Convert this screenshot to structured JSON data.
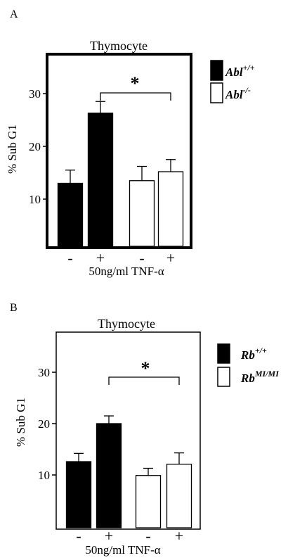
{
  "chart_data": [
    {
      "type": "bar",
      "panel_label": "A",
      "title": "Thymocyte",
      "ylabel": "% Sub G1",
      "xlabel": "50ng/ml TNF-α",
      "ylim": [
        0,
        38
      ],
      "yticks": [
        10,
        20,
        30
      ],
      "grid": false,
      "legend_position": "right",
      "categories": [
        "-",
        "+",
        "-",
        "+"
      ],
      "bars": [
        {
          "group": "Abl+/+",
          "category": "-",
          "value": 13.0,
          "error": 2.5,
          "fill": "#000000"
        },
        {
          "group": "Abl+/+",
          "category": "+",
          "value": 26.3,
          "error": 2.2,
          "fill": "#000000"
        },
        {
          "group": "Abl-/-",
          "category": "-",
          "value": 13.5,
          "error": 2.7,
          "fill": "#ffffff"
        },
        {
          "group": "Abl-/-",
          "category": "+",
          "value": 15.2,
          "error": 2.3,
          "fill": "#ffffff"
        }
      ],
      "legend": [
        {
          "base": "Abl",
          "sup": "+/+",
          "fill": "#000000"
        },
        {
          "base": "Abl",
          "sup": "-/-",
          "fill": "#ffffff"
        }
      ],
      "annotation": {
        "text": "*",
        "from_bar": 1,
        "to_bar": 3
      }
    },
    {
      "type": "bar",
      "panel_label": "B",
      "title": "Thymocyte",
      "ylabel": "% Sub G1",
      "xlabel": "50ng/ml TNF-α",
      "ylim": [
        0,
        35
      ],
      "yticks": [
        10,
        20,
        30
      ],
      "grid": false,
      "legend_position": "right",
      "categories": [
        "-",
        "+",
        "-",
        "+"
      ],
      "bars": [
        {
          "group": "Rb+/+",
          "category": "-",
          "value": 12.6,
          "error": 1.6,
          "fill": "#000000"
        },
        {
          "group": "Rb+/+",
          "category": "+",
          "value": 20.0,
          "error": 1.5,
          "fill": "#000000"
        },
        {
          "group": "RbMI/MI",
          "category": "-",
          "value": 9.9,
          "error": 1.4,
          "fill": "#ffffff"
        },
        {
          "group": "RbMI/MI",
          "category": "+",
          "value": 12.1,
          "error": 2.2,
          "fill": "#ffffff"
        }
      ],
      "legend": [
        {
          "base": "Rb",
          "sup": "+/+",
          "fill": "#000000"
        },
        {
          "base": "Rb",
          "sup": "MI/MI",
          "fill": "#ffffff"
        }
      ],
      "annotation": {
        "text": "*",
        "from_bar": 1,
        "to_bar": 3
      }
    }
  ]
}
